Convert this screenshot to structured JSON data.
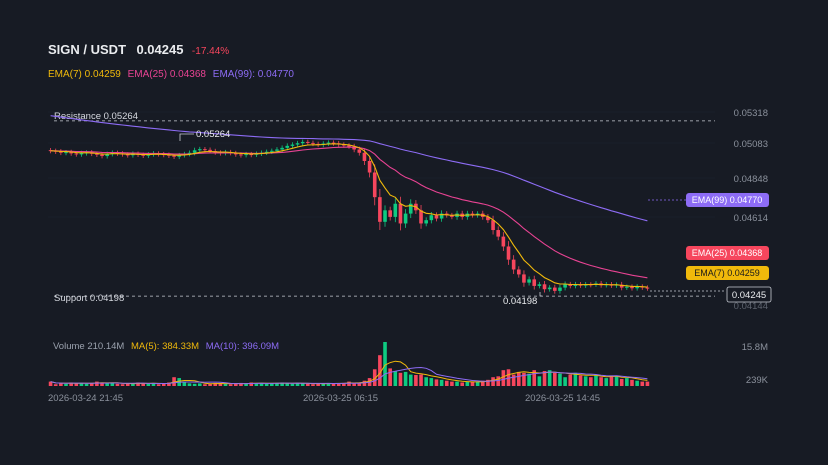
{
  "header": {
    "pair": "SIGN / USDT",
    "price": "0.04245",
    "change": "-17.44%"
  },
  "ema_legend": {
    "ema7": "EMA(7) 0.04259",
    "ema25": "EMA(25) 0.04368",
    "ema99": "EMA(99): 0.04770"
  },
  "volume_legend": {
    "volume": "Volume 210.14M",
    "ma5": "MA(5): 384.33M",
    "ma10": "MA(10): 396.09M"
  },
  "colors": {
    "up": "#0ecb81",
    "down": "#f6465d",
    "ema7": "#f0b90b",
    "ema25": "#e84393",
    "ema99": "#8d6cf5",
    "background": "#171b24"
  },
  "chart_data": {
    "type": "candlestick",
    "y_ticks": [
      "0.05318",
      "0.05083",
      "0.04848",
      "0.04614",
      "0.04144"
    ],
    "ylim": [
      0.04144,
      0.05318
    ],
    "x_ticks": [
      "2026-03-24 21:45",
      "2026-03-25 06:15",
      "2026-03-25 14:45"
    ],
    "volume_ticks": [
      "15.8M",
      "239K"
    ],
    "resistance": {
      "label": "Resistance 0.05264",
      "value": 0.05264
    },
    "support": {
      "label": "Support 0.04198",
      "value": 0.04198
    },
    "high_marker": "0.05264",
    "low_marker": "0.04198",
    "current_price_tag": "0.04245",
    "ema_tags": {
      "ema99": "EMA(99) 0.04770",
      "ema25": "EMA(25) 0.04368",
      "ema7": "EMA(7) 0.04259"
    },
    "close": [
      0.05082,
      0.05078,
      0.0507,
      0.05074,
      0.05066,
      0.0506,
      0.05068,
      0.05072,
      0.05064,
      0.05058,
      0.0505,
      0.05062,
      0.0507,
      0.05066,
      0.0506,
      0.05055,
      0.05064,
      0.05058,
      0.05052,
      0.0506,
      0.05066,
      0.05062,
      0.05058,
      0.05052,
      0.05046,
      0.05055,
      0.05062,
      0.0507,
      0.05085,
      0.05092,
      0.05088,
      0.0508,
      0.05072,
      0.05068,
      0.05074,
      0.05068,
      0.0506,
      0.05056,
      0.05062,
      0.05058,
      0.05064,
      0.0507,
      0.05076,
      0.05082,
      0.0509,
      0.051,
      0.05112,
      0.0512,
      0.05128,
      0.05136,
      0.0513,
      0.05124,
      0.05118,
      0.05126,
      0.05132,
      0.05128,
      0.0512,
      0.05114,
      0.05108,
      0.0509,
      0.0507,
      0.0502,
      0.0495,
      0.048,
      0.0465,
      0.0472,
      0.0468,
      0.0476,
      0.0464,
      0.047,
      0.0476,
      0.0472,
      0.0464,
      0.0466,
      0.0469,
      0.0467,
      0.047,
      0.0469,
      0.0468,
      0.047,
      0.0468,
      0.047,
      0.0469,
      0.047,
      0.0468,
      0.0466,
      0.046,
      0.0456,
      0.045,
      0.0442,
      0.0436,
      0.0433,
      0.0428,
      0.043,
      0.0426,
      0.0427,
      0.0424,
      0.0425,
      0.0423,
      0.0425,
      0.0427,
      0.0426,
      0.0427,
      0.04262,
      0.0427,
      0.04268,
      0.04275,
      0.04264,
      0.0427,
      0.04262,
      0.04268,
      0.0425,
      0.04255,
      0.04246,
      0.04256,
      0.0425,
      0.04245
    ],
    "volume": [
      0.1,
      0.04,
      0.06,
      0.05,
      0.08,
      0.06,
      0.07,
      0.05,
      0.06,
      0.1,
      0.08,
      0.06,
      0.07,
      0.05,
      0.04,
      0.06,
      0.05,
      0.08,
      0.06,
      0.05,
      0.07,
      0.04,
      0.06,
      0.08,
      0.2,
      0.18,
      0.1,
      0.06,
      0.05,
      0.06,
      0.04,
      0.05,
      0.07,
      0.06,
      0.05,
      0.04,
      0.06,
      0.07,
      0.05,
      0.08,
      0.06,
      0.07,
      0.05,
      0.06,
      0.07,
      0.08,
      0.06,
      0.05,
      0.07,
      0.06,
      0.05,
      0.04,
      0.06,
      0.05,
      0.07,
      0.06,
      0.05,
      0.07,
      0.1,
      0.06,
      0.08,
      0.12,
      0.18,
      0.38,
      0.7,
      1.0,
      0.4,
      0.34,
      0.3,
      0.32,
      0.26,
      0.25,
      0.26,
      0.2,
      0.18,
      0.15,
      0.14,
      0.12,
      0.1,
      0.1,
      0.08,
      0.1,
      0.09,
      0.1,
      0.12,
      0.14,
      0.2,
      0.22,
      0.36,
      0.38,
      0.26,
      0.32,
      0.3,
      0.28,
      0.36,
      0.22,
      0.34,
      0.36,
      0.3,
      0.28,
      0.2,
      0.26,
      0.3,
      0.24,
      0.22,
      0.2,
      0.26,
      0.2,
      0.18,
      0.24,
      0.22,
      0.16,
      0.18,
      0.14,
      0.12,
      0.1,
      0.1
    ]
  }
}
